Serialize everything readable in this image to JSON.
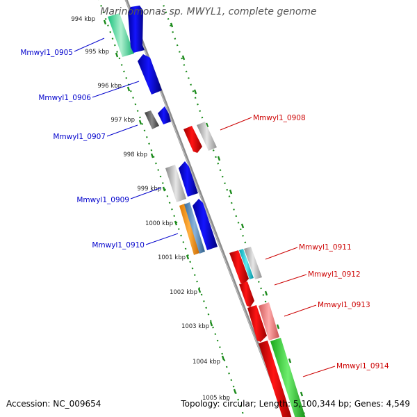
{
  "title": "Marinomonas sp. MWYL1, complete genome",
  "footer": {
    "accession": "Accession: NC_009654",
    "stats": "Topology: circular; Length: 5,100,344 bp; Genes: 4,549"
  },
  "colors": {
    "backbone": "#8c8c8c",
    "ruler": "#1a8a1a",
    "label_minus": "#0000cc",
    "label_plus": "#cc0000"
  },
  "ticks": [
    "994 kbp",
    "995 kbp",
    "996 kbp",
    "997 kbp",
    "998 kbp",
    "999 kbp",
    "1000 kbp",
    "1001 kbp",
    "1002 kbp",
    "1003 kbp",
    "1004 kbp",
    "1005 kbp"
  ],
  "genes_minus": [
    {
      "name": "Mmwyl1_0905",
      "color": "#0000ee"
    },
    {
      "name": "Mmwyl1_0906",
      "color": "#0000ee"
    },
    {
      "name": "Mmwyl1_0907",
      "color": "#0000ee"
    },
    {
      "name": "Mmwyl1_0909",
      "color": "#0000ee"
    },
    {
      "name": "Mmwyl1_0910",
      "color": "#0000ee"
    }
  ],
  "genes_plus": [
    {
      "name": "Mmwyl1_0908",
      "color": "#ee0000"
    },
    {
      "name": "Mmwyl1_0911",
      "color": "#ee0000"
    },
    {
      "name": "Mmwyl1_0912",
      "color": "#ee0000"
    },
    {
      "name": "Mmwyl1_0913",
      "color": "#ee0000"
    },
    {
      "name": "Mmwyl1_0914",
      "color": "#ee0000"
    }
  ]
}
